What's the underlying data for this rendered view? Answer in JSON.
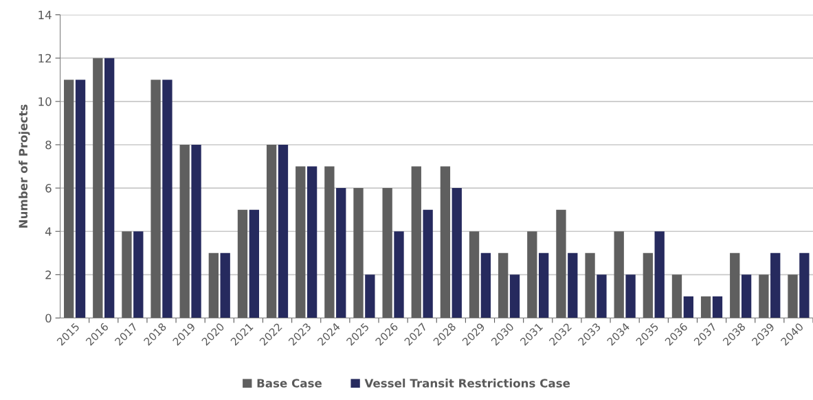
{
  "chart_data": {
    "type": "bar",
    "ylabel": "Number of Projects",
    "categories": [
      "2015",
      "2016",
      "2017",
      "2018",
      "2019",
      "2020",
      "2021",
      "2022",
      "2023",
      "2024",
      "2025",
      "2026",
      "2027",
      "2028",
      "2029",
      "2030",
      "2031",
      "2032",
      "2033",
      "2034",
      "2035",
      "2036",
      "2037",
      "2038",
      "2039",
      "2040"
    ],
    "series": [
      {
        "name": "Base Case",
        "color": "#5f5f5f",
        "values": [
          11,
          12,
          4,
          11,
          8,
          3,
          5,
          8,
          7,
          7,
          6,
          6,
          7,
          7,
          4,
          3,
          4,
          5,
          3,
          4,
          3,
          2,
          1,
          3,
          2,
          2
        ]
      },
      {
        "name": "Vessel Transit Restrictions Case",
        "color": "#262a5e",
        "values": [
          11,
          12,
          4,
          11,
          8,
          3,
          5,
          8,
          7,
          6,
          2,
          4,
          5,
          6,
          3,
          2,
          3,
          3,
          2,
          2,
          4,
          1,
          1,
          2,
          3,
          3
        ]
      }
    ],
    "ylim": [
      0,
      14
    ],
    "yticks": [
      0,
      2,
      4,
      6,
      8,
      10,
      12,
      14
    ],
    "grid": "y",
    "legend": "bottom"
  }
}
